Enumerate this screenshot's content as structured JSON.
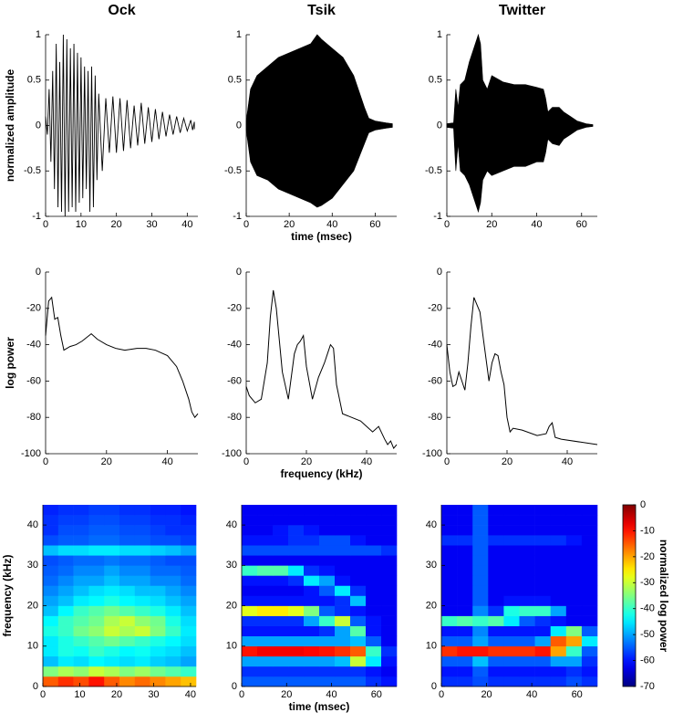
{
  "chart_data": [
    {
      "type": "waveform",
      "title": "Ock",
      "ylabel": "normalized amplitude",
      "fill": false,
      "color": "#000000",
      "xlim": [
        0,
        43
      ],
      "ylim": [
        -1,
        1
      ],
      "xticks": [
        0,
        10,
        20,
        30,
        40
      ],
      "yticks": [
        -1,
        -0.5,
        0,
        0.5,
        1
      ],
      "x": [
        0,
        1,
        2,
        3,
        4,
        5,
        6,
        7,
        8,
        9,
        10,
        11,
        12,
        13,
        14,
        15,
        17,
        19,
        21,
        23,
        25,
        27,
        29,
        31,
        33,
        35,
        37,
        39,
        41,
        42
      ],
      "upper": [
        0.1,
        0.4,
        0.6,
        0.9,
        0.7,
        1.0,
        0.95,
        0.85,
        0.9,
        0.8,
        0.75,
        0.65,
        0.6,
        0.65,
        0.55,
        0.35,
        0.3,
        0.32,
        0.3,
        0.28,
        0.22,
        0.25,
        0.2,
        0.18,
        0.15,
        0.12,
        0.1,
        0.08,
        0.06,
        0.04
      ],
      "lower": [
        -0.1,
        -0.4,
        -0.7,
        -0.9,
        -0.95,
        -1.0,
        -0.95,
        -0.9,
        -0.95,
        -0.85,
        -0.8,
        -0.7,
        -0.95,
        -0.9,
        -0.6,
        -0.5,
        -0.3,
        -0.3,
        -0.28,
        -0.25,
        -0.22,
        -0.2,
        -0.18,
        -0.15,
        -0.12,
        -0.1,
        -0.08,
        -0.06,
        -0.05,
        -0.04
      ]
    },
    {
      "type": "waveform",
      "title": "Tsik",
      "xlabel": "time (msec)",
      "fill": true,
      "color": "#000000",
      "xlim": [
        0,
        70
      ],
      "ylim": [
        -1,
        1
      ],
      "xticks": [
        0,
        20,
        40,
        60
      ],
      "yticks": [
        -1,
        -0.5,
        0,
        0.5,
        1
      ],
      "x": [
        0,
        2,
        5,
        10,
        15,
        20,
        25,
        30,
        33,
        35,
        40,
        45,
        50,
        55,
        57,
        60,
        65,
        68
      ],
      "upper": [
        0.05,
        0.4,
        0.55,
        0.65,
        0.75,
        0.8,
        0.85,
        0.9,
        1.0,
        0.95,
        0.85,
        0.75,
        0.55,
        0.2,
        0.08,
        0.05,
        0.03,
        0.02
      ],
      "lower": [
        -0.05,
        -0.4,
        -0.55,
        -0.6,
        -0.7,
        -0.75,
        -0.8,
        -0.85,
        -0.9,
        -0.88,
        -0.8,
        -0.65,
        -0.5,
        -0.2,
        -0.08,
        -0.05,
        -0.03,
        -0.02
      ]
    },
    {
      "type": "waveform",
      "title": "Twitter",
      "fill": true,
      "color": "#000000",
      "xlim": [
        0,
        67
      ],
      "ylim": [
        -1,
        1
      ],
      "xticks": [
        0,
        20,
        40,
        60
      ],
      "yticks": [
        -1,
        -0.5,
        0,
        0.5,
        1
      ],
      "x": [
        0,
        3,
        4,
        5,
        6,
        8,
        10,
        12,
        14,
        15,
        16,
        18,
        20,
        25,
        30,
        35,
        40,
        43,
        44,
        45,
        47,
        50,
        52,
        55,
        58,
        62,
        65
      ],
      "upper": [
        0.02,
        0.03,
        0.4,
        0.2,
        0.45,
        0.5,
        0.7,
        0.85,
        1.0,
        0.9,
        0.5,
        0.4,
        0.55,
        0.48,
        0.45,
        0.45,
        0.42,
        0.4,
        0.3,
        0.15,
        0.2,
        0.2,
        0.15,
        0.1,
        0.05,
        0.02,
        0.01
      ],
      "lower": [
        -0.02,
        -0.03,
        -0.5,
        -0.2,
        -0.5,
        -0.55,
        -0.65,
        -0.8,
        -0.95,
        -0.85,
        -0.6,
        -0.5,
        -0.55,
        -0.5,
        -0.45,
        -0.45,
        -0.4,
        -0.4,
        -0.3,
        -0.15,
        -0.2,
        -0.22,
        -0.15,
        -0.1,
        -0.05,
        -0.02,
        -0.01
      ]
    },
    {
      "type": "line",
      "ylabel": "log power",
      "color": "#000000",
      "xlim": [
        0,
        50
      ],
      "ylim": [
        -100,
        0
      ],
      "xticks": [
        0,
        20,
        40
      ],
      "yticks": [
        -100,
        -80,
        -60,
        -40,
        -20,
        0
      ],
      "x": [
        0,
        1,
        2,
        3,
        4,
        5,
        6,
        8,
        10,
        12,
        15,
        17,
        20,
        23,
        26,
        30,
        33,
        36,
        40,
        43,
        45,
        47,
        48,
        49,
        50
      ],
      "values": [
        -35,
        -16,
        -14,
        -26,
        -25,
        -35,
        -43,
        -41,
        -40,
        -38,
        -34,
        -37,
        -40,
        -42,
        -43,
        -42,
        -42,
        -43,
        -46,
        -52,
        -60,
        -70,
        -77,
        -80,
        -78
      ]
    },
    {
      "type": "line",
      "xlabel": "frequency (kHz)",
      "color": "#000000",
      "xlim": [
        0,
        50
      ],
      "ylim": [
        -100,
        0
      ],
      "xticks": [
        0,
        20,
        40
      ],
      "yticks": [
        -100,
        -80,
        -60,
        -40,
        -20,
        0
      ],
      "x": [
        0,
        1,
        3,
        5,
        7,
        8,
        9,
        10,
        12,
        14,
        16,
        17,
        18,
        19,
        20,
        22,
        24,
        26,
        27,
        28,
        29,
        30,
        32,
        35,
        38,
        40,
        42,
        44,
        46,
        47,
        48,
        49,
        50
      ],
      "values": [
        -63,
        -68,
        -72,
        -70,
        -50,
        -25,
        -10,
        -20,
        -55,
        -70,
        -45,
        -40,
        -38,
        -35,
        -52,
        -70,
        -58,
        -50,
        -45,
        -40,
        -42,
        -62,
        -78,
        -80,
        -82,
        -85,
        -88,
        -85,
        -92,
        -95,
        -93,
        -97,
        -95
      ]
    },
    {
      "type": "line",
      "color": "#000000",
      "xlim": [
        0,
        50
      ],
      "ylim": [
        -100,
        0
      ],
      "xticks": [
        0,
        20,
        40
      ],
      "yticks": [
        -100,
        -80,
        -60,
        -40,
        -20,
        0
      ],
      "x": [
        0,
        1,
        2,
        3,
        4,
        5,
        6,
        7,
        8,
        9,
        10,
        11,
        12,
        14,
        15,
        16,
        17,
        18,
        19,
        20,
        21,
        22,
        25,
        30,
        33,
        34,
        35,
        36,
        38,
        50
      ],
      "values": [
        -40,
        -55,
        -63,
        -62,
        -55,
        -60,
        -65,
        -50,
        -30,
        -14,
        -18,
        -22,
        -35,
        -60,
        -50,
        -45,
        -46,
        -55,
        -62,
        -80,
        -88,
        -86,
        -87,
        -90,
        -89,
        -85,
        -83,
        -91,
        -92,
        -95
      ]
    },
    {
      "type": "heatmap",
      "ylabel": "frequency (kHz)",
      "xlim": [
        0,
        41.5
      ],
      "ylim": [
        0,
        45
      ],
      "xticks": [
        0,
        10,
        20,
        30,
        40
      ],
      "yticks": [
        0,
        10,
        20,
        30,
        40
      ],
      "zlim": [
        -70,
        0
      ],
      "xbins": [
        0,
        4.15,
        8.3,
        12.45,
        16.6,
        20.75,
        24.9,
        29.05,
        33.2,
        37.35,
        41.5
      ],
      "ybins": [
        0,
        2.5,
        5,
        7.5,
        10,
        12.5,
        15,
        17.5,
        20,
        22.5,
        25,
        27.5,
        30,
        32.5,
        35,
        37.5,
        40,
        42.5,
        45
      ],
      "z": [
        [
          -15,
          -12,
          -14,
          -10,
          -15,
          -18,
          -16,
          -18,
          -20,
          -22
        ],
        [
          -35,
          -32,
          -34,
          -30,
          -32,
          -35,
          -33,
          -36,
          -38,
          -40
        ],
        [
          -48,
          -45,
          -46,
          -44,
          -45,
          -46,
          -45,
          -47,
          -48,
          -50
        ],
        [
          -45,
          -42,
          -43,
          -40,
          -42,
          -44,
          -43,
          -45,
          -46,
          -48
        ],
        [
          -45,
          -42,
          -40,
          -38,
          -36,
          -38,
          -40,
          -42,
          -44,
          -46
        ],
        [
          -42,
          -40,
          -36,
          -34,
          -30,
          -32,
          -30,
          -35,
          -40,
          -45
        ],
        [
          -44,
          -40,
          -38,
          -36,
          -32,
          -30,
          -34,
          -36,
          -42,
          -46
        ],
        [
          -48,
          -44,
          -40,
          -38,
          -36,
          -38,
          -40,
          -42,
          -45,
          -48
        ],
        [
          -50,
          -48,
          -45,
          -44,
          -42,
          -44,
          -45,
          -46,
          -48,
          -50
        ],
        [
          -52,
          -50,
          -48,
          -46,
          -45,
          -46,
          -48,
          -48,
          -50,
          -52
        ],
        [
          -54,
          -52,
          -50,
          -50,
          -48,
          -50,
          -50,
          -52,
          -52,
          -54
        ],
        [
          -55,
          -54,
          -52,
          -52,
          -50,
          -52,
          -52,
          -54,
          -54,
          -55
        ],
        [
          -56,
          -55,
          -54,
          -54,
          -53,
          -54,
          -54,
          -55,
          -56,
          -56
        ],
        [
          -48,
          -46,
          -46,
          -45,
          -45,
          -46,
          -46,
          -47,
          -48,
          -50
        ],
        [
          -56,
          -55,
          -55,
          -54,
          -54,
          -55,
          -55,
          -56,
          -56,
          -57
        ],
        [
          -58,
          -56,
          -56,
          -55,
          -55,
          -56,
          -56,
          -57,
          -58,
          -58
        ],
        [
          -58,
          -57,
          -57,
          -56,
          -56,
          -57,
          -57,
          -58,
          -58,
          -59
        ],
        [
          -59,
          -58,
          -58,
          -57,
          -57,
          -58,
          -58,
          -59,
          -59,
          -60
        ]
      ]
    },
    {
      "type": "heatmap",
      "xlabel": "time (msec)",
      "xlim": [
        0,
        69
      ],
      "ylim": [
        0,
        45
      ],
      "xticks": [
        0,
        20,
        40,
        60
      ],
      "yticks": [
        0,
        10,
        20,
        30,
        40
      ],
      "zlim": [
        -70,
        0
      ],
      "xbins": [
        0,
        6.9,
        13.8,
        20.7,
        27.6,
        34.5,
        41.4,
        48.3,
        55.2,
        62.1,
        69
      ],
      "ybins": [
        0,
        2.5,
        5,
        7.5,
        10,
        12.5,
        15,
        17.5,
        20,
        22.5,
        25,
        27.5,
        30,
        32.5,
        35,
        37.5,
        40,
        42.5,
        45
      ],
      "z": [
        [
          -55,
          -55,
          -55,
          -55,
          -55,
          -55,
          -55,
          -55,
          -58,
          -60
        ],
        [
          -58,
          -58,
          -58,
          -58,
          -58,
          -58,
          -58,
          -58,
          -60,
          -62
        ],
        [
          -50,
          -50,
          -50,
          -50,
          -50,
          -50,
          -48,
          -30,
          -45,
          -60
        ],
        [
          -10,
          -8,
          -8,
          -8,
          -9,
          -10,
          -12,
          -15,
          -40,
          -58
        ],
        [
          -50,
          -50,
          -50,
          -50,
          -50,
          -50,
          -50,
          -48,
          -55,
          -62
        ],
        [
          -60,
          -60,
          -60,
          -60,
          -60,
          -58,
          -50,
          -38,
          -60,
          -62
        ],
        [
          -58,
          -58,
          -58,
          -58,
          -50,
          -40,
          -30,
          -55,
          -60,
          -62
        ],
        [
          -28,
          -25,
          -25,
          -28,
          -35,
          -55,
          -58,
          -60,
          -62,
          -62
        ],
        [
          -60,
          -60,
          -60,
          -60,
          -60,
          -60,
          -58,
          -48,
          -62,
          -62
        ],
        [
          -62,
          -62,
          -62,
          -62,
          -60,
          -55,
          -45,
          -58,
          -62,
          -62
        ],
        [
          -60,
          -60,
          -60,
          -58,
          -45,
          -50,
          -60,
          -62,
          -62,
          -62
        ],
        [
          -40,
          -38,
          -38,
          -45,
          -58,
          -60,
          -62,
          -62,
          -62,
          -62
        ],
        [
          -62,
          -62,
          -62,
          -62,
          -62,
          -62,
          -62,
          -62,
          -62,
          -62
        ],
        [
          -56,
          -56,
          -56,
          -56,
          -56,
          -56,
          -56,
          -56,
          -56,
          -58
        ],
        [
          -60,
          -60,
          -60,
          -58,
          -58,
          -56,
          -56,
          -60,
          -62,
          -62
        ],
        [
          -62,
          -62,
          -60,
          -58,
          -60,
          -62,
          -62,
          -62,
          -62,
          -62
        ],
        [
          -62,
          -62,
          -62,
          -62,
          -62,
          -62,
          -62,
          -62,
          -62,
          -62
        ],
        [
          -62,
          -62,
          -62,
          -62,
          -62,
          -62,
          -62,
          -62,
          -62,
          -62
        ]
      ]
    },
    {
      "type": "heatmap",
      "xlim": [
        0,
        69
      ],
      "ylim": [
        0,
        45
      ],
      "xticks": [
        0,
        20,
        40,
        60
      ],
      "yticks": [
        0,
        10,
        20,
        30,
        40
      ],
      "zlim": [
        -70,
        0
      ],
      "colorbar": {
        "label": "normalized log power",
        "ticks": [
          0,
          -10,
          -20,
          -30,
          -40,
          -50,
          -60,
          -70
        ]
      },
      "xbins": [
        0,
        6.9,
        13.8,
        20.7,
        27.6,
        34.5,
        41.4,
        48.3,
        55.2,
        62.1,
        69
      ],
      "ybins": [
        0,
        2.5,
        5,
        7.5,
        10,
        12.5,
        15,
        17.5,
        20,
        22.5,
        25,
        27.5,
        30,
        32.5,
        35,
        37.5,
        40,
        42.5,
        45
      ],
      "z": [
        [
          -58,
          -58,
          -56,
          -58,
          -58,
          -58,
          -58,
          -58,
          -56,
          -58
        ],
        [
          -60,
          -60,
          -55,
          -60,
          -60,
          -60,
          -60,
          -60,
          -58,
          -60
        ],
        [
          -55,
          -55,
          -48,
          -55,
          -55,
          -55,
          -55,
          -50,
          -50,
          -58
        ],
        [
          -12,
          -10,
          -10,
          -12,
          -12,
          -12,
          -10,
          -20,
          -40,
          -55
        ],
        [
          -55,
          -55,
          -50,
          -55,
          -55,
          -55,
          -50,
          -15,
          -20,
          -45
        ],
        [
          -60,
          -60,
          -52,
          -60,
          -60,
          -60,
          -60,
          -45,
          -35,
          -55
        ],
        [
          -40,
          -38,
          -40,
          -38,
          -45,
          -55,
          -58,
          -60,
          -62,
          -62
        ],
        [
          -62,
          -62,
          -52,
          -58,
          -42,
          -40,
          -40,
          -50,
          -62,
          -62
        ],
        [
          -62,
          -62,
          -55,
          -62,
          -60,
          -60,
          -60,
          -62,
          -62,
          -62
        ],
        [
          -62,
          -62,
          -55,
          -62,
          -62,
          -62,
          -62,
          -62,
          -62,
          -62
        ],
        [
          -62,
          -62,
          -55,
          -62,
          -62,
          -62,
          -62,
          -62,
          -62,
          -62
        ],
        [
          -62,
          -62,
          -55,
          -62,
          -62,
          -62,
          -62,
          -62,
          -62,
          -62
        ],
        [
          -62,
          -62,
          -55,
          -62,
          -62,
          -62,
          -62,
          -62,
          -62,
          -62
        ],
        [
          -62,
          -62,
          -55,
          -62,
          -62,
          -62,
          -62,
          -62,
          -62,
          -62
        ],
        [
          -58,
          -58,
          -55,
          -58,
          -58,
          -58,
          -58,
          -58,
          -60,
          -62
        ],
        [
          -62,
          -62,
          -55,
          -62,
          -62,
          -62,
          -62,
          -62,
          -62,
          -62
        ],
        [
          -62,
          -62,
          -55,
          -62,
          -62,
          -62,
          -62,
          -62,
          -62,
          -62
        ],
        [
          -62,
          -62,
          -55,
          -62,
          -62,
          -62,
          -62,
          -62,
          -62,
          -62
        ]
      ]
    }
  ]
}
